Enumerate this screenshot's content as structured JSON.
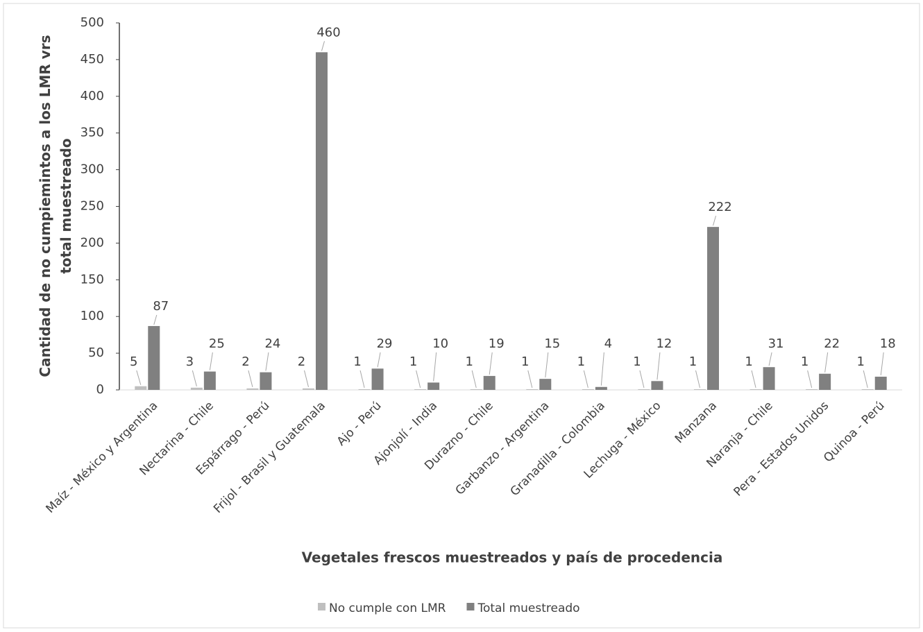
{
  "chart_data": {
    "type": "bar",
    "x_label": "Vegetales frescos muestreados y país de procedencia",
    "y_label": "Cantidad de no cumpiemintos a los LMR vrs total muestreado",
    "categories": [
      "Maíz - México y Argentina",
      "Nectarina - Chile",
      "Espárrago - Perú",
      "Frijol - Brasil y Guatemala",
      "Ajo - Perú",
      "Ajonjolí - India",
      "Durazno - Chile",
      "Garbanzo - Argentina",
      "Granadilla - Colombia",
      "Lechuga - México",
      "Manzana",
      "Naranja - Chile",
      "Pera - Estados Unidos",
      "Quinoa - Perú"
    ],
    "series": [
      {
        "name": "No cumple con LMR",
        "color": "#bfbfbf",
        "values": [
          5,
          3,
          2,
          2,
          1,
          1,
          1,
          1,
          1,
          1,
          1,
          1,
          1,
          1
        ]
      },
      {
        "name": "Total muestreado",
        "color": "#808080",
        "values": [
          87,
          25,
          24,
          460,
          29,
          10,
          19,
          15,
          4,
          12,
          222,
          31,
          22,
          18
        ]
      }
    ],
    "ylim": [
      0,
      500
    ],
    "yticks": [
      0,
      50,
      100,
      150,
      200,
      250,
      300,
      350,
      400,
      450,
      500
    ],
    "grid": false,
    "legend": "bottom"
  }
}
